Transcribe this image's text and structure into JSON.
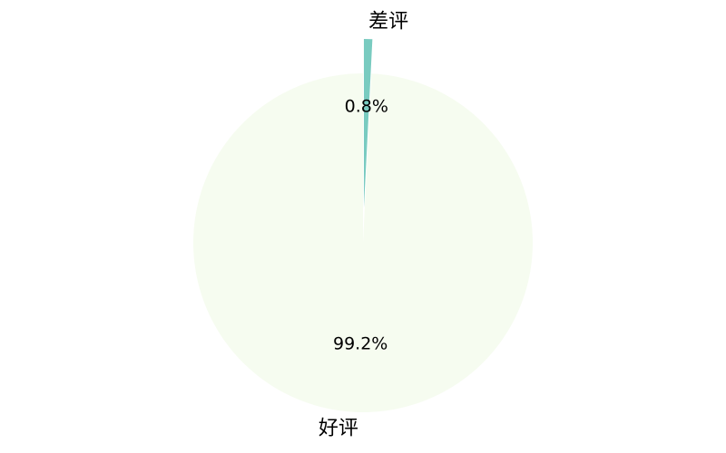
{
  "chart_data": {
    "type": "pie",
    "slices": [
      {
        "label": "差评",
        "value": 0.8,
        "pct_label": "0.8%",
        "color": "#79CBC0",
        "exploded": true
      },
      {
        "label": "好评",
        "value": 99.2,
        "pct_label": "99.2%",
        "color": "#F6FCF0",
        "exploded": false
      }
    ],
    "start_angle": "12 o'clock",
    "direction": "clockwise"
  }
}
